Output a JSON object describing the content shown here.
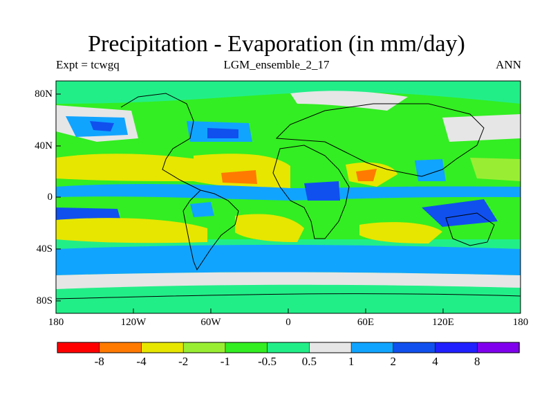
{
  "header": {
    "title": "Precipitation - Evaporation (in mm/day)",
    "experiment": "Expt = tcwgq",
    "ensemble": "LGM_ensemble_2_17",
    "season": "ANN"
  },
  "map": {
    "lat_ticks": [
      "80N",
      "40N",
      "0",
      "40S",
      "80S"
    ],
    "lon_ticks": [
      "180",
      "120W",
      "60W",
      "0",
      "60E",
      "120E",
      "180"
    ]
  },
  "colorbar": {
    "colors": [
      "#ff0000",
      "#ff7a00",
      "#e6e600",
      "#99ee33",
      "#33ee22",
      "#22ee88",
      "#e6e6e6",
      "#11a4ff",
      "#1050ee",
      "#2020ff",
      "#8000ee"
    ],
    "labels": [
      "-8",
      "-4",
      "-2",
      "-1",
      "-0.5",
      "0.5",
      "1",
      "2",
      "4",
      "8"
    ]
  }
}
